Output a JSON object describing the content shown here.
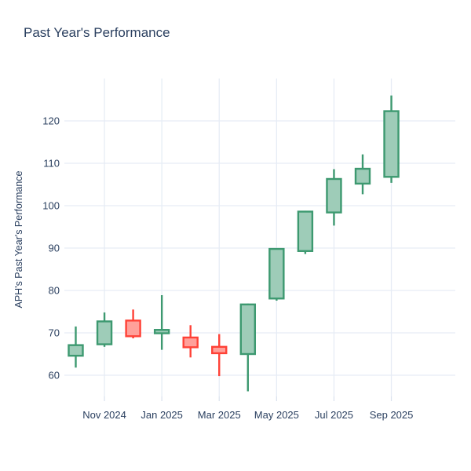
{
  "chart_data": {
    "type": "candlestick",
    "title": "Past Year's Performance",
    "xlabel": "",
    "ylabel": "APH's Past Year's Performance",
    "ylim": [
      55,
      130
    ],
    "grid": true,
    "legend_position": "none",
    "y_ticks": [
      60,
      70,
      80,
      90,
      100,
      110,
      120
    ],
    "x_ticks": [
      {
        "label": "Nov 2024",
        "month_index": 1
      },
      {
        "label": "Jan 2025",
        "month_index": 3
      },
      {
        "label": "Mar 2025",
        "month_index": 5
      },
      {
        "label": "May 2025",
        "month_index": 7
      },
      {
        "label": "Jul 2025",
        "month_index": 9
      },
      {
        "label": "Sep 2025",
        "month_index": 11
      }
    ],
    "categories": [
      "Oct 2024",
      "Nov 2024",
      "Dec 2024",
      "Jan 2025",
      "Feb 2025",
      "Mar 2025",
      "Apr 2025",
      "May 2025",
      "Jun 2025",
      "Jul 2025",
      "Aug 2025",
      "Sep 2025"
    ],
    "candles": [
      {
        "month": "Oct 2024",
        "open": 64.6,
        "high": 71.5,
        "low": 61.8,
        "close": 67.1,
        "direction": "up"
      },
      {
        "month": "Nov 2024",
        "open": 67.3,
        "high": 74.8,
        "low": 66.7,
        "close": 72.7,
        "direction": "up"
      },
      {
        "month": "Dec 2024",
        "open": 72.9,
        "high": 75.5,
        "low": 68.7,
        "close": 69.2,
        "direction": "down"
      },
      {
        "month": "Jan 2025",
        "open": 69.9,
        "high": 78.9,
        "low": 66.0,
        "close": 70.7,
        "direction": "up"
      },
      {
        "month": "Feb 2025",
        "open": 68.9,
        "high": 71.8,
        "low": 64.2,
        "close": 66.6,
        "direction": "down"
      },
      {
        "month": "Mar 2025",
        "open": 66.7,
        "high": 69.7,
        "low": 59.8,
        "close": 65.2,
        "direction": "down"
      },
      {
        "month": "Apr 2025",
        "open": 65.0,
        "high": 76.9,
        "low": 56.2,
        "close": 76.7,
        "direction": "up"
      },
      {
        "month": "May 2025",
        "open": 78.1,
        "high": 89.9,
        "low": 77.6,
        "close": 89.8,
        "direction": "up"
      },
      {
        "month": "Jun 2025",
        "open": 89.3,
        "high": 98.8,
        "low": 88.6,
        "close": 98.6,
        "direction": "up"
      },
      {
        "month": "Jul 2025",
        "open": 98.4,
        "high": 108.6,
        "low": 95.3,
        "close": 106.3,
        "direction": "up"
      },
      {
        "month": "Aug 2025",
        "open": 105.2,
        "high": 112.1,
        "low": 102.7,
        "close": 108.7,
        "direction": "up"
      },
      {
        "month": "Sep 2025",
        "open": 106.8,
        "high": 126.0,
        "low": 105.4,
        "close": 122.3,
        "direction": "up"
      }
    ],
    "colors": {
      "increasing_line": "#3d9970",
      "increasing_fill": "#9eccb8",
      "decreasing_line": "#ff4136",
      "decreasing_fill": "#ffa09a",
      "grid": "#e6ecf5",
      "tick_mark": "#dce3ee",
      "tick_text": "#2a3f5f",
      "title_text": "#2a3f5f",
      "background": "#ffffff"
    }
  }
}
